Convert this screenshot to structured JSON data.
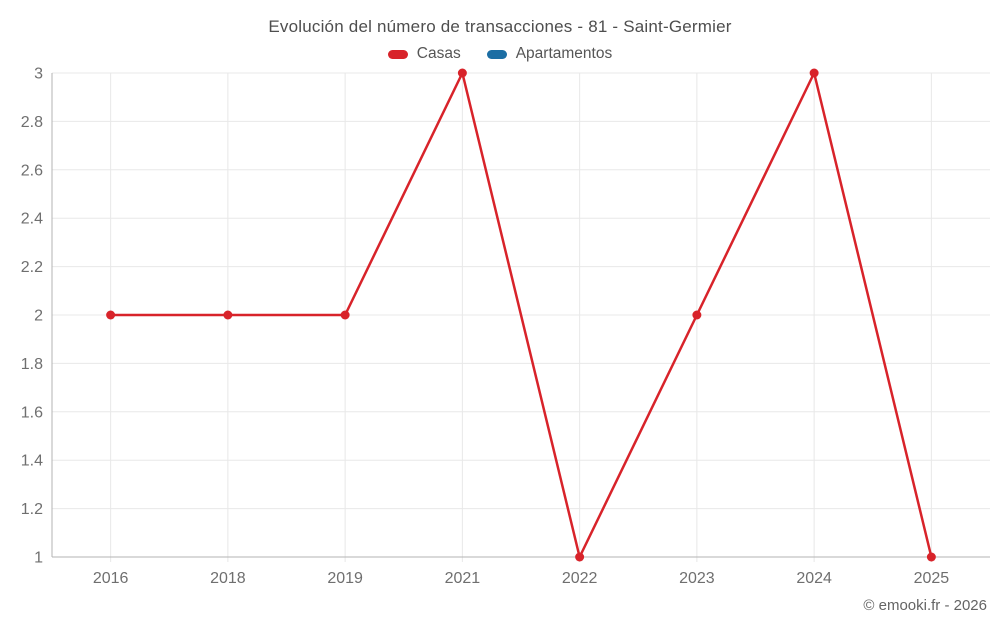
{
  "chart_data": {
    "type": "line",
    "title": "Evolución del número de transacciones - 81 - Saint-Germier",
    "categories": [
      "2016",
      "2018",
      "2019",
      "2021",
      "2022",
      "2023",
      "2024",
      "2025"
    ],
    "series": [
      {
        "name": "Casas",
        "color": "#d8232a",
        "values": [
          2,
          2,
          2,
          3,
          1,
          2,
          3,
          1
        ]
      },
      {
        "name": "Apartamentos",
        "color": "#1c6ea4",
        "values": []
      }
    ],
    "xlabel": "",
    "ylabel": "",
    "ylim": [
      1,
      3
    ],
    "ytick_step": 0.2,
    "grid": true,
    "legend_position": "top",
    "grid_color": "#e8e8e8",
    "axis_color": "#b3b3b3",
    "tick_label_color": "#6f6f6f"
  },
  "footer": {
    "copyright": "© emooki.fr - 2026"
  }
}
